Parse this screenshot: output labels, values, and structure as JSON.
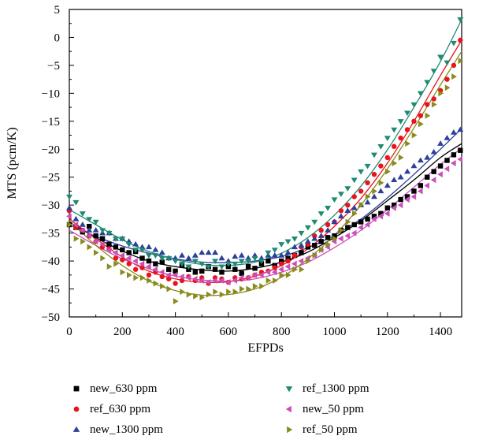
{
  "chart_data": {
    "type": "scatter",
    "xlabel": "EFPDs",
    "ylabel": "MTS (pcm/K)",
    "xlim": [
      0,
      1480
    ],
    "ylim": [
      -50,
      5
    ],
    "xticks": [
      0,
      200,
      400,
      600,
      800,
      1000,
      1200,
      1400
    ],
    "yticks": [
      5,
      0,
      -5,
      -10,
      -15,
      -20,
      -25,
      -30,
      -35,
      -40,
      -45,
      -50
    ],
    "grid": false,
    "legend_position": "bottom",
    "series": [
      {
        "name": "new_630 ppm",
        "color": "#000000",
        "marker": "square",
        "fit": [
          [
            0,
            -33
          ],
          [
            100,
            -35.8
          ],
          [
            200,
            -38.2
          ],
          [
            300,
            -40
          ],
          [
            400,
            -41
          ],
          [
            500,
            -41.6
          ],
          [
            600,
            -41.8
          ],
          [
            700,
            -41.3
          ],
          [
            800,
            -40.2
          ],
          [
            900,
            -38.4
          ],
          [
            1000,
            -35.8
          ],
          [
            1100,
            -32.8
          ],
          [
            1200,
            -29.2
          ],
          [
            1300,
            -25.5
          ],
          [
            1400,
            -21.5
          ],
          [
            1480,
            -19
          ]
        ],
        "x": [
          0,
          25,
          50,
          75,
          100,
          125,
          150,
          175,
          200,
          225,
          250,
          275,
          300,
          325,
          350,
          375,
          400,
          425,
          450,
          475,
          500,
          525,
          550,
          575,
          600,
          625,
          650,
          675,
          700,
          725,
          750,
          775,
          800,
          825,
          850,
          875,
          900,
          925,
          950,
          975,
          1000,
          1025,
          1050,
          1075,
          1100,
          1125,
          1150,
          1175,
          1200,
          1225,
          1250,
          1275,
          1300,
          1325,
          1350,
          1375,
          1400,
          1425,
          1450,
          1475
        ],
        "values": [
          -33.5,
          -34,
          -34.8,
          -33.8,
          -35.5,
          -36,
          -37,
          -37.5,
          -38,
          -38.5,
          -38.3,
          -39.5,
          -40,
          -40.5,
          -40.2,
          -41.5,
          -41.8,
          -40.8,
          -41.5,
          -42,
          -41.8,
          -41,
          -41.5,
          -42,
          -41,
          -41.5,
          -42.2,
          -41,
          -41.3,
          -40.5,
          -40,
          -40.8,
          -40,
          -39.5,
          -39,
          -38.5,
          -37.5,
          -37.2,
          -36.5,
          -35.8,
          -35.5,
          -34.5,
          -34,
          -33.5,
          -33,
          -32.5,
          -32,
          -31.5,
          -30.5,
          -30,
          -29,
          -28.5,
          -27.5,
          -26.5,
          -25,
          -24,
          -23,
          -22,
          -21,
          -20.2
        ]
      },
      {
        "name": "ref_630 ppm",
        "color": "#e8131c",
        "marker": "circle",
        "fit": [
          [
            0,
            -32.5
          ],
          [
            100,
            -36
          ],
          [
            200,
            -39.3
          ],
          [
            300,
            -41.8
          ],
          [
            400,
            -43.2
          ],
          [
            500,
            -43.8
          ],
          [
            600,
            -43.7
          ],
          [
            700,
            -42.7
          ],
          [
            800,
            -40.8
          ],
          [
            900,
            -37.8
          ],
          [
            1000,
            -33.8
          ],
          [
            1100,
            -28.8
          ],
          [
            1200,
            -22.5
          ],
          [
            1300,
            -15
          ],
          [
            1400,
            -6.8
          ],
          [
            1480,
            -0.5
          ]
        ],
        "x": [
          0,
          25,
          50,
          75,
          100,
          125,
          150,
          175,
          200,
          225,
          250,
          275,
          300,
          325,
          350,
          375,
          400,
          425,
          450,
          475,
          500,
          525,
          550,
          575,
          600,
          625,
          650,
          675,
          700,
          725,
          750,
          775,
          800,
          825,
          850,
          875,
          900,
          925,
          950,
          975,
          1000,
          1025,
          1050,
          1075,
          1100,
          1125,
          1150,
          1175,
          1200,
          1225,
          1250,
          1275,
          1300,
          1325,
          1350,
          1375,
          1400,
          1425,
          1450,
          1475
        ],
        "values": [
          -31,
          -34,
          -34.5,
          -35.5,
          -36.5,
          -37.5,
          -37.8,
          -39.5,
          -39.8,
          -40.5,
          -41.5,
          -41.2,
          -42.5,
          -42,
          -42.8,
          -43.2,
          -44,
          -43.5,
          -42.8,
          -43.5,
          -43,
          -44,
          -43,
          -43.2,
          -43.8,
          -43,
          -43.2,
          -43,
          -42.5,
          -42,
          -41.8,
          -41.2,
          -40.5,
          -40,
          -39,
          -37.5,
          -37,
          -35.5,
          -34.5,
          -33.5,
          -33,
          -31,
          -30,
          -28.5,
          -27.5,
          -26,
          -24.5,
          -23,
          -21.5,
          -19.5,
          -18,
          -16.5,
          -15,
          -14,
          -12,
          -11,
          -9.5,
          -7.5,
          -5,
          -0.5
        ]
      },
      {
        "name": "new_1300 ppm",
        "color": "#2b3f9b",
        "marker": "triangle-up",
        "fit": [
          [
            0,
            -33.5
          ],
          [
            100,
            -35.6
          ],
          [
            200,
            -37.3
          ],
          [
            300,
            -38.6
          ],
          [
            400,
            -39.6
          ],
          [
            500,
            -40.2
          ],
          [
            600,
            -40.3
          ],
          [
            700,
            -40
          ],
          [
            800,
            -39.2
          ],
          [
            900,
            -37.6
          ],
          [
            1000,
            -35.4
          ],
          [
            1100,
            -32.5
          ],
          [
            1200,
            -28.7
          ],
          [
            1300,
            -24.5
          ],
          [
            1400,
            -20
          ],
          [
            1480,
            -16.3
          ]
        ],
        "x": [
          0,
          25,
          50,
          75,
          100,
          125,
          150,
          175,
          200,
          225,
          250,
          275,
          300,
          325,
          350,
          375,
          400,
          425,
          450,
          475,
          500,
          525,
          550,
          575,
          600,
          625,
          650,
          675,
          700,
          725,
          750,
          775,
          800,
          825,
          850,
          875,
          900,
          925,
          950,
          975,
          1000,
          1025,
          1050,
          1075,
          1100,
          1125,
          1150,
          1175,
          1200,
          1225,
          1250,
          1275,
          1300,
          1325,
          1350,
          1375,
          1400,
          1425,
          1450,
          1475
        ],
        "values": [
          -30.5,
          -32.5,
          -33.5,
          -34.5,
          -34.5,
          -35,
          -35,
          -36,
          -36,
          -36.5,
          -37,
          -37.5,
          -37.5,
          -38,
          -38.5,
          -39.5,
          -39.5,
          -39,
          -39.5,
          -39,
          -38.5,
          -38.5,
          -38.5,
          -39.5,
          -40,
          -39.2,
          -39,
          -39.5,
          -39,
          -39.5,
          -39,
          -39,
          -39,
          -38.5,
          -37.5,
          -37.2,
          -36.5,
          -36,
          -35.5,
          -34.5,
          -33,
          -32,
          -31,
          -30.5,
          -30,
          -29.5,
          -28.5,
          -27.5,
          -26.5,
          -25.5,
          -25,
          -24,
          -23,
          -22,
          -21.5,
          -20.5,
          -19,
          -18,
          -17,
          -16.5
        ]
      },
      {
        "name": "ref_1300 ppm",
        "color": "#1f8a70",
        "marker": "triangle-down",
        "fit": [
          [
            0,
            -30.8
          ],
          [
            100,
            -33.5
          ],
          [
            200,
            -36.2
          ],
          [
            300,
            -38.3
          ],
          [
            400,
            -39.7
          ],
          [
            500,
            -40.6
          ],
          [
            600,
            -40.8
          ],
          [
            700,
            -40.2
          ],
          [
            800,
            -38.6
          ],
          [
            900,
            -35.8
          ],
          [
            1000,
            -31.8
          ],
          [
            1100,
            -26.6
          ],
          [
            1200,
            -20.1
          ],
          [
            1300,
            -12.5
          ],
          [
            1400,
            -4.3
          ],
          [
            1480,
            3.2
          ]
        ],
        "x": [
          0,
          25,
          50,
          75,
          100,
          125,
          150,
          175,
          200,
          225,
          250,
          275,
          300,
          325,
          350,
          375,
          400,
          425,
          450,
          475,
          500,
          525,
          550,
          575,
          600,
          625,
          650,
          675,
          700,
          725,
          750,
          775,
          800,
          825,
          850,
          875,
          900,
          925,
          950,
          975,
          1000,
          1025,
          1050,
          1075,
          1100,
          1125,
          1150,
          1175,
          1200,
          1225,
          1250,
          1275,
          1300,
          1325,
          1350,
          1375,
          1400,
          1425,
          1450,
          1475
        ],
        "values": [
          -28.5,
          -29.5,
          -31.5,
          -32.5,
          -33,
          -34.5,
          -35,
          -36,
          -36,
          -37,
          -38,
          -38,
          -39,
          -39,
          -39.5,
          -39.5,
          -40,
          -40.5,
          -41,
          -40,
          -40.5,
          -41,
          -40,
          -41,
          -40.5,
          -40.5,
          -40,
          -40,
          -39.5,
          -40,
          -38.5,
          -38,
          -37,
          -36.5,
          -36,
          -35,
          -34,
          -33,
          -31.5,
          -30.5,
          -29,
          -28,
          -27,
          -25.5,
          -24,
          -23,
          -21,
          -19.5,
          -18,
          -16.5,
          -15,
          -13.5,
          -12,
          -10,
          -8,
          -6,
          -3.5,
          -4.5,
          -1,
          3.2
        ]
      },
      {
        "name": "new_50 ppm",
        "color": "#c94fb6",
        "marker": "triangle-left",
        "fit": [
          [
            0,
            -34.5
          ],
          [
            100,
            -37.2
          ],
          [
            200,
            -39.6
          ],
          [
            300,
            -41.4
          ],
          [
            400,
            -42.7
          ],
          [
            500,
            -43.4
          ],
          [
            600,
            -43.6
          ],
          [
            700,
            -43.2
          ],
          [
            800,
            -42
          ],
          [
            900,
            -40.2
          ],
          [
            1000,
            -37.6
          ],
          [
            1100,
            -34.5
          ],
          [
            1200,
            -30.8
          ],
          [
            1300,
            -26.8
          ],
          [
            1400,
            -22.7
          ],
          [
            1480,
            -19.8
          ]
        ],
        "x": [
          0,
          25,
          50,
          75,
          100,
          125,
          150,
          175,
          200,
          225,
          250,
          275,
          300,
          325,
          350,
          375,
          400,
          425,
          450,
          475,
          500,
          525,
          550,
          575,
          600,
          625,
          650,
          675,
          700,
          725,
          750,
          775,
          800,
          825,
          850,
          875,
          900,
          925,
          950,
          975,
          1000,
          1025,
          1050,
          1075,
          1100,
          1125,
          1150,
          1175,
          1200,
          1225,
          1250,
          1275,
          1300,
          1325,
          1350,
          1375,
          1400,
          1425,
          1450,
          1475
        ],
        "values": [
          -32,
          -33.5,
          -34.5,
          -35.5,
          -36.5,
          -37,
          -38,
          -38.5,
          -39,
          -39.5,
          -40,
          -40.5,
          -41,
          -41.5,
          -42,
          -42.5,
          -42.5,
          -42.8,
          -43,
          -43.2,
          -43.5,
          -43.8,
          -43.5,
          -43.5,
          -43.8,
          -43.5,
          -43,
          -43,
          -42.5,
          -42.5,
          -42,
          -42,
          -41.5,
          -41,
          -40.5,
          -40,
          -39.5,
          -39,
          -38,
          -37.5,
          -36.5,
          -36,
          -35.5,
          -35,
          -34,
          -33.5,
          -32.5,
          -32,
          -31.5,
          -30.5,
          -30,
          -29,
          -28.5,
          -27.5,
          -26.5,
          -25.5,
          -24.5,
          -23.5,
          -22.5,
          -21.8
        ]
      },
      {
        "name": "ref_50 ppm",
        "color": "#8a8a1e",
        "marker": "triangle-right",
        "fit": [
          [
            0,
            -32.8
          ],
          [
            100,
            -37.2
          ],
          [
            200,
            -40.8
          ],
          [
            300,
            -43.6
          ],
          [
            400,
            -45.3
          ],
          [
            500,
            -46.1
          ],
          [
            600,
            -46
          ],
          [
            700,
            -45
          ],
          [
            800,
            -42.9
          ],
          [
            900,
            -39.6
          ],
          [
            1000,
            -35.4
          ],
          [
            1100,
            -30
          ],
          [
            1200,
            -23.5
          ],
          [
            1300,
            -16.2
          ],
          [
            1400,
            -8.5
          ],
          [
            1480,
            -2.5
          ]
        ],
        "x": [
          0,
          25,
          50,
          75,
          100,
          125,
          150,
          175,
          200,
          225,
          250,
          275,
          300,
          325,
          350,
          375,
          400,
          425,
          450,
          475,
          500,
          525,
          550,
          575,
          600,
          625,
          650,
          675,
          700,
          725,
          750,
          775,
          800,
          825,
          850,
          875,
          900,
          925,
          950,
          975,
          1000,
          1025,
          1050,
          1075,
          1100,
          1125,
          1150,
          1175,
          1200,
          1225,
          1250,
          1275,
          1300,
          1325,
          1350,
          1375,
          1400,
          1425,
          1450,
          1475
        ],
        "values": [
          -33.5,
          -36,
          -36.5,
          -37.5,
          -38.5,
          -39.5,
          -41,
          -40.5,
          -42,
          -42.5,
          -43,
          -43,
          -43.5,
          -44,
          -44.5,
          -45,
          -47.2,
          -45.5,
          -46,
          -46.3,
          -46.5,
          -46,
          -45.5,
          -46,
          -45.5,
          -45.5,
          -45,
          -45,
          -44.5,
          -44.5,
          -43.5,
          -43.5,
          -42.5,
          -42.5,
          -41.5,
          -41.5,
          -40,
          -39,
          -38,
          -37,
          -36,
          -34.5,
          -33,
          -31.5,
          -30,
          -28.5,
          -27.5,
          -26,
          -24,
          -22.5,
          -21.5,
          -19,
          -17.5,
          -15.5,
          -14,
          -12,
          -10,
          -9,
          -7,
          -4.2
        ]
      }
    ]
  },
  "legend": {
    "items": [
      {
        "label": "new_630 ppm",
        "marker": "square",
        "color": "#000000"
      },
      {
        "label": "ref_1300 ppm",
        "marker": "triangle-down",
        "color": "#1f8a70"
      },
      {
        "label": "ref_630 ppm",
        "marker": "circle",
        "color": "#e8131c"
      },
      {
        "label": "new_50 ppm",
        "marker": "triangle-left",
        "color": "#c94fb6"
      },
      {
        "label": "new_1300 ppm",
        "marker": "triangle-up",
        "color": "#2b3f9b"
      },
      {
        "label": "ref_50 ppm",
        "marker": "triangle-right",
        "color": "#8a8a1e"
      }
    ]
  }
}
